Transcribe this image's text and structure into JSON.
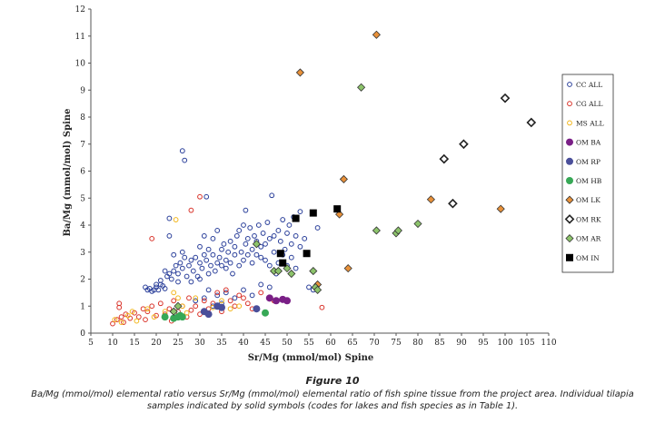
{
  "figure": {
    "title": "Figure 10",
    "caption": "Ba/Mg (mmol/mol) elemental ratio versus Sr/Mg (mmol/mol) elemental ratio of fish spine tissue from the project area. Individual tilapia samples indicated by solid symbols (codes for lakes and fish species as in Table 1)."
  },
  "chart_data": {
    "type": "scatter",
    "xlabel": "Sr/Mg (mmol/mol) Spine",
    "ylabel": "Ba/Mg (mmol/mol) Spine",
    "xlim": [
      5,
      110
    ],
    "ylim": [
      0,
      12
    ],
    "xticks": [
      "5",
      "10",
      "15",
      "20",
      "25",
      "30",
      "35",
      "40",
      "45",
      "50",
      "55",
      "60",
      "65",
      "70",
      "75",
      "80",
      "85",
      "90",
      "95",
      "100",
      "105",
      "110"
    ],
    "yticks": [
      "0",
      "1",
      "2",
      "3",
      "4",
      "5",
      "6",
      "7",
      "8",
      "9",
      "10",
      "11",
      "12"
    ],
    "grid": false,
    "legend_position": "right",
    "series": [
      {
        "name": "CC ALL",
        "marker": "circle-open",
        "color": "#2a3f9a",
        "points": [
          [
            17.5,
            1.7
          ],
          [
            18,
            1.6
          ],
          [
            18.5,
            1.65
          ],
          [
            19,
            1.55
          ],
          [
            19.5,
            1.6
          ],
          [
            20,
            1.7
          ],
          [
            20.5,
            1.6
          ],
          [
            21,
            1.8
          ],
          [
            21.5,
            1.75
          ],
          [
            22,
            1.65
          ],
          [
            22.5,
            2.1
          ],
          [
            23,
            2.2
          ],
          [
            23,
            4.25
          ],
          [
            23,
            3.6
          ],
          [
            23.5,
            2.0
          ],
          [
            24,
            2.3
          ],
          [
            24.5,
            2.5
          ],
          [
            25,
            2.2
          ],
          [
            25,
            1.9
          ],
          [
            25.5,
            2.6
          ],
          [
            26,
            2.4
          ],
          [
            26,
            6.75
          ],
          [
            26.5,
            6.4
          ],
          [
            26.5,
            2.8
          ],
          [
            27,
            2.1
          ],
          [
            27.5,
            2.5
          ],
          [
            28,
            1.9
          ],
          [
            28.5,
            2.3
          ],
          [
            29,
            2.8
          ],
          [
            29.5,
            2.1
          ],
          [
            30,
            2.6
          ],
          [
            30,
            3.2
          ],
          [
            30.5,
            2.4
          ],
          [
            31,
            2.9
          ],
          [
            31,
            3.6
          ],
          [
            31.5,
            5.05
          ],
          [
            31.5,
            2.7
          ],
          [
            32,
            2.2
          ],
          [
            32,
            3.1
          ],
          [
            32.5,
            2.5
          ],
          [
            33,
            2.9
          ],
          [
            33,
            3.5
          ],
          [
            33.5,
            2.3
          ],
          [
            34,
            2.6
          ],
          [
            34,
            3.8
          ],
          [
            34.5,
            2.8
          ],
          [
            35,
            3.1
          ],
          [
            35,
            2.5
          ],
          [
            35.5,
            3.3
          ],
          [
            36,
            2.4
          ],
          [
            36,
            2.7
          ],
          [
            36.5,
            3.0
          ],
          [
            37,
            3.4
          ],
          [
            37,
            2.6
          ],
          [
            37.5,
            2.2
          ],
          [
            38,
            3.2
          ],
          [
            38,
            2.9
          ],
          [
            38.5,
            3.6
          ],
          [
            39,
            2.5
          ],
          [
            39,
            3.8
          ],
          [
            39.5,
            3.0
          ],
          [
            40,
            4.0
          ],
          [
            40,
            2.7
          ],
          [
            40.5,
            3.3
          ],
          [
            40.5,
            4.55
          ],
          [
            41,
            3.5
          ],
          [
            41,
            2.9
          ],
          [
            41.5,
            3.9
          ],
          [
            42,
            3.1
          ],
          [
            42,
            2.6
          ],
          [
            42.5,
            3.6
          ],
          [
            43,
            3.4
          ],
          [
            43,
            2.9
          ],
          [
            43.5,
            4.0
          ],
          [
            44,
            3.2
          ],
          [
            44,
            2.8
          ],
          [
            44.5,
            3.7
          ],
          [
            45,
            3.3
          ],
          [
            45,
            2.7
          ],
          [
            45.5,
            4.1
          ],
          [
            46,
            3.5
          ],
          [
            46,
            2.5
          ],
          [
            46.5,
            5.1
          ],
          [
            47,
            3.6
          ],
          [
            47,
            3.0
          ],
          [
            47.5,
            2.2
          ],
          [
            48,
            3.8
          ],
          [
            48,
            2.6
          ],
          [
            48.5,
            3.4
          ],
          [
            49,
            2.9
          ],
          [
            49,
            4.2
          ],
          [
            49.5,
            3.1
          ],
          [
            50,
            3.7
          ],
          [
            50,
            2.5
          ],
          [
            50.5,
            4.0
          ],
          [
            51,
            3.3
          ],
          [
            51,
            2.8
          ],
          [
            51.5,
            4.3
          ],
          [
            52,
            3.6
          ],
          [
            52,
            2.4
          ],
          [
            53,
            3.2
          ],
          [
            53,
            4.5
          ],
          [
            54,
            3.5
          ],
          [
            55,
            1.7
          ],
          [
            56,
            1.6
          ],
          [
            57,
            3.9
          ],
          [
            20,
            1.8
          ],
          [
            21,
            1.95
          ],
          [
            22,
            2.3
          ],
          [
            24,
            2.9
          ],
          [
            26,
            3.0
          ],
          [
            28,
            2.7
          ],
          [
            30,
            2.0
          ],
          [
            32,
            1.6
          ],
          [
            34,
            1.4
          ],
          [
            36,
            1.5
          ],
          [
            38,
            1.3
          ],
          [
            40,
            1.6
          ],
          [
            42,
            1.4
          ],
          [
            44,
            1.8
          ],
          [
            46,
            1.7
          ],
          [
            33,
            1.0
          ],
          [
            35,
            1.1
          ],
          [
            31,
            1.3
          ],
          [
            29,
            1.2
          ]
        ]
      },
      {
        "name": "CG ALL",
        "marker": "circle-open",
        "color": "#d9342b",
        "points": [
          [
            10,
            0.35
          ],
          [
            11,
            0.5
          ],
          [
            11.5,
            1.1
          ],
          [
            11.5,
            0.95
          ],
          [
            12,
            0.6
          ],
          [
            12.5,
            0.4
          ],
          [
            13,
            0.7
          ],
          [
            14,
            0.55
          ],
          [
            15,
            0.75
          ],
          [
            16,
            0.6
          ],
          [
            17,
            0.9
          ],
          [
            17.5,
            0.5
          ],
          [
            18,
            0.8
          ],
          [
            19,
            3.5
          ],
          [
            19,
            1.0
          ],
          [
            20,
            0.65
          ],
          [
            21,
            1.1
          ],
          [
            22,
            0.7
          ],
          [
            23,
            0.9
          ],
          [
            23.5,
            0.45
          ],
          [
            24,
            1.2
          ],
          [
            25,
            0.8
          ],
          [
            26,
            1.0
          ],
          [
            27,
            0.6
          ],
          [
            27.5,
            1.3
          ],
          [
            28,
            4.55
          ],
          [
            28,
            0.85
          ],
          [
            29,
            1.0
          ],
          [
            30,
            5.05
          ],
          [
            30,
            0.7
          ],
          [
            31,
            1.2
          ],
          [
            32,
            0.9
          ],
          [
            33,
            1.1
          ],
          [
            34,
            1.5
          ],
          [
            35,
            0.8
          ],
          [
            36,
            1.6
          ],
          [
            37,
            1.2
          ],
          [
            38,
            1.0
          ],
          [
            39,
            1.4
          ],
          [
            40,
            1.3
          ],
          [
            41,
            1.1
          ],
          [
            42,
            0.9
          ],
          [
            44,
            1.5
          ],
          [
            47,
            1.2
          ],
          [
            58,
            0.95
          ]
        ]
      },
      {
        "name": "MS ALL",
        "marker": "circle-open",
        "color": "#f2b61c",
        "points": [
          [
            10.5,
            0.5
          ],
          [
            12,
            0.4
          ],
          [
            13.5,
            0.65
          ],
          [
            14.5,
            0.8
          ],
          [
            15.5,
            0.45
          ],
          [
            18,
            0.9
          ],
          [
            19.5,
            0.6
          ],
          [
            22,
            0.8
          ],
          [
            24.5,
            4.2
          ],
          [
            24,
            1.5
          ],
          [
            25,
            1.3
          ],
          [
            26,
            1.0
          ],
          [
            27,
            0.75
          ],
          [
            29,
            1.3
          ],
          [
            31,
            0.8
          ],
          [
            33,
            0.95
          ],
          [
            35,
            1.2
          ],
          [
            37,
            0.9
          ],
          [
            39,
            1.0
          ]
        ]
      },
      {
        "name": "OM BA",
        "marker": "circle-filled",
        "color": "#7a1f86",
        "points": [
          [
            46,
            1.3
          ],
          [
            47.5,
            1.2
          ],
          [
            49,
            1.25
          ],
          [
            50,
            1.2
          ]
        ]
      },
      {
        "name": "OM RP",
        "marker": "circle-filled",
        "color": "#4a4f9a",
        "points": [
          [
            31,
            0.8
          ],
          [
            32,
            0.7
          ],
          [
            34,
            1.0
          ],
          [
            35,
            0.95
          ],
          [
            43,
            0.9
          ]
        ]
      },
      {
        "name": "OM HB",
        "marker": "circle-filled",
        "color": "#37a856",
        "points": [
          [
            22,
            0.6
          ],
          [
            24,
            0.55
          ],
          [
            25,
            0.6
          ],
          [
            25.5,
            0.65
          ],
          [
            26,
            0.6
          ],
          [
            45,
            0.75
          ]
        ]
      },
      {
        "name": "OM LK",
        "marker": "diamond-filled",
        "color": "#e8913a",
        "points": [
          [
            53,
            9.65
          ],
          [
            57,
            1.8
          ],
          [
            62,
            4.4
          ],
          [
            63,
            5.7
          ],
          [
            64,
            2.4
          ],
          [
            70.5,
            11.05
          ],
          [
            83,
            4.95
          ],
          [
            99,
            4.6
          ]
        ]
      },
      {
        "name": "OM RK",
        "marker": "diamond-open",
        "color": "#222222",
        "points": [
          [
            86,
            6.45
          ],
          [
            88,
            4.8
          ],
          [
            90.5,
            7.0
          ],
          [
            100,
            8.7
          ],
          [
            106,
            7.8
          ]
        ]
      },
      {
        "name": "OM AR",
        "marker": "diamond-filled",
        "color": "#8cc36b",
        "points": [
          [
            24,
            0.8
          ],
          [
            25,
            1.0
          ],
          [
            43,
            3.3
          ],
          [
            47,
            2.3
          ],
          [
            48,
            2.3
          ],
          [
            50,
            2.4
          ],
          [
            51,
            2.2
          ],
          [
            56,
            2.3
          ],
          [
            56.5,
            1.7
          ],
          [
            57,
            1.6
          ],
          [
            67,
            9.1
          ],
          [
            70.5,
            3.8
          ],
          [
            75,
            3.7
          ],
          [
            75.5,
            3.8
          ],
          [
            80,
            4.05
          ]
        ]
      },
      {
        "name": "OM IN",
        "marker": "square-filled",
        "color": "#000000",
        "points": [
          [
            48.5,
            2.95
          ],
          [
            49,
            2.6
          ],
          [
            52,
            4.25
          ],
          [
            54.5,
            2.95
          ],
          [
            56,
            4.45
          ],
          [
            61.5,
            4.6
          ]
        ]
      }
    ]
  }
}
